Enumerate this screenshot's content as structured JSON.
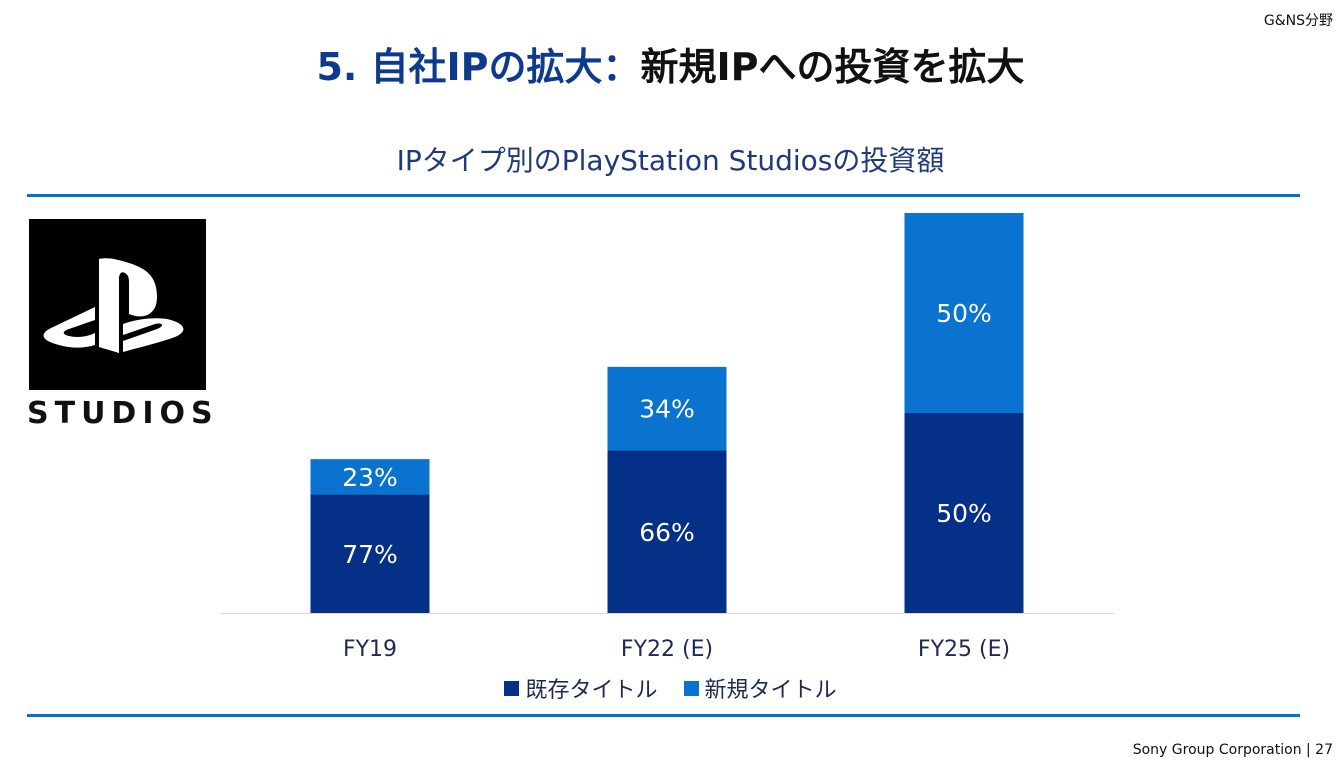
{
  "corner_label": "G&NS分野",
  "title": {
    "part1": "5. 自社IPの拡大：",
    "part2": "新規IPへの投資を拡大"
  },
  "subtitle": "IPタイプ別のPlayStation Studiosの投資額",
  "logo": {
    "wordmark": "STUDIOS"
  },
  "colors": {
    "existing": "#043088",
    "new": "#0a73cf",
    "title_blue": "#0d3a8c",
    "rule": "#0a6fc7"
  },
  "chart_data": {
    "type": "bar",
    "stacked": true,
    "title": "IPタイプ別のPlayStation Studiosの投資額",
    "categories": [
      "FY19",
      "FY22 (E)",
      "FY25 (E)"
    ],
    "series": [
      {
        "name": "既存タイトル",
        "values": [
          77,
          66,
          50
        ],
        "labels": [
          "77%",
          "66%",
          "50%"
        ]
      },
      {
        "name": "新規タイトル",
        "values": [
          23,
          34,
          50
        ],
        "labels": [
          "23%",
          "34%",
          "50%"
        ]
      }
    ],
    "bar_totals_relative": [
      1.0,
      1.6,
      2.6
    ],
    "legend": [
      "既存タイトル",
      "新規タイトル"
    ],
    "legend_position": "bottom-center",
    "xlabel": "",
    "ylabel": "",
    "grid": false
  },
  "footer": "Sony Group Corporation | 27"
}
